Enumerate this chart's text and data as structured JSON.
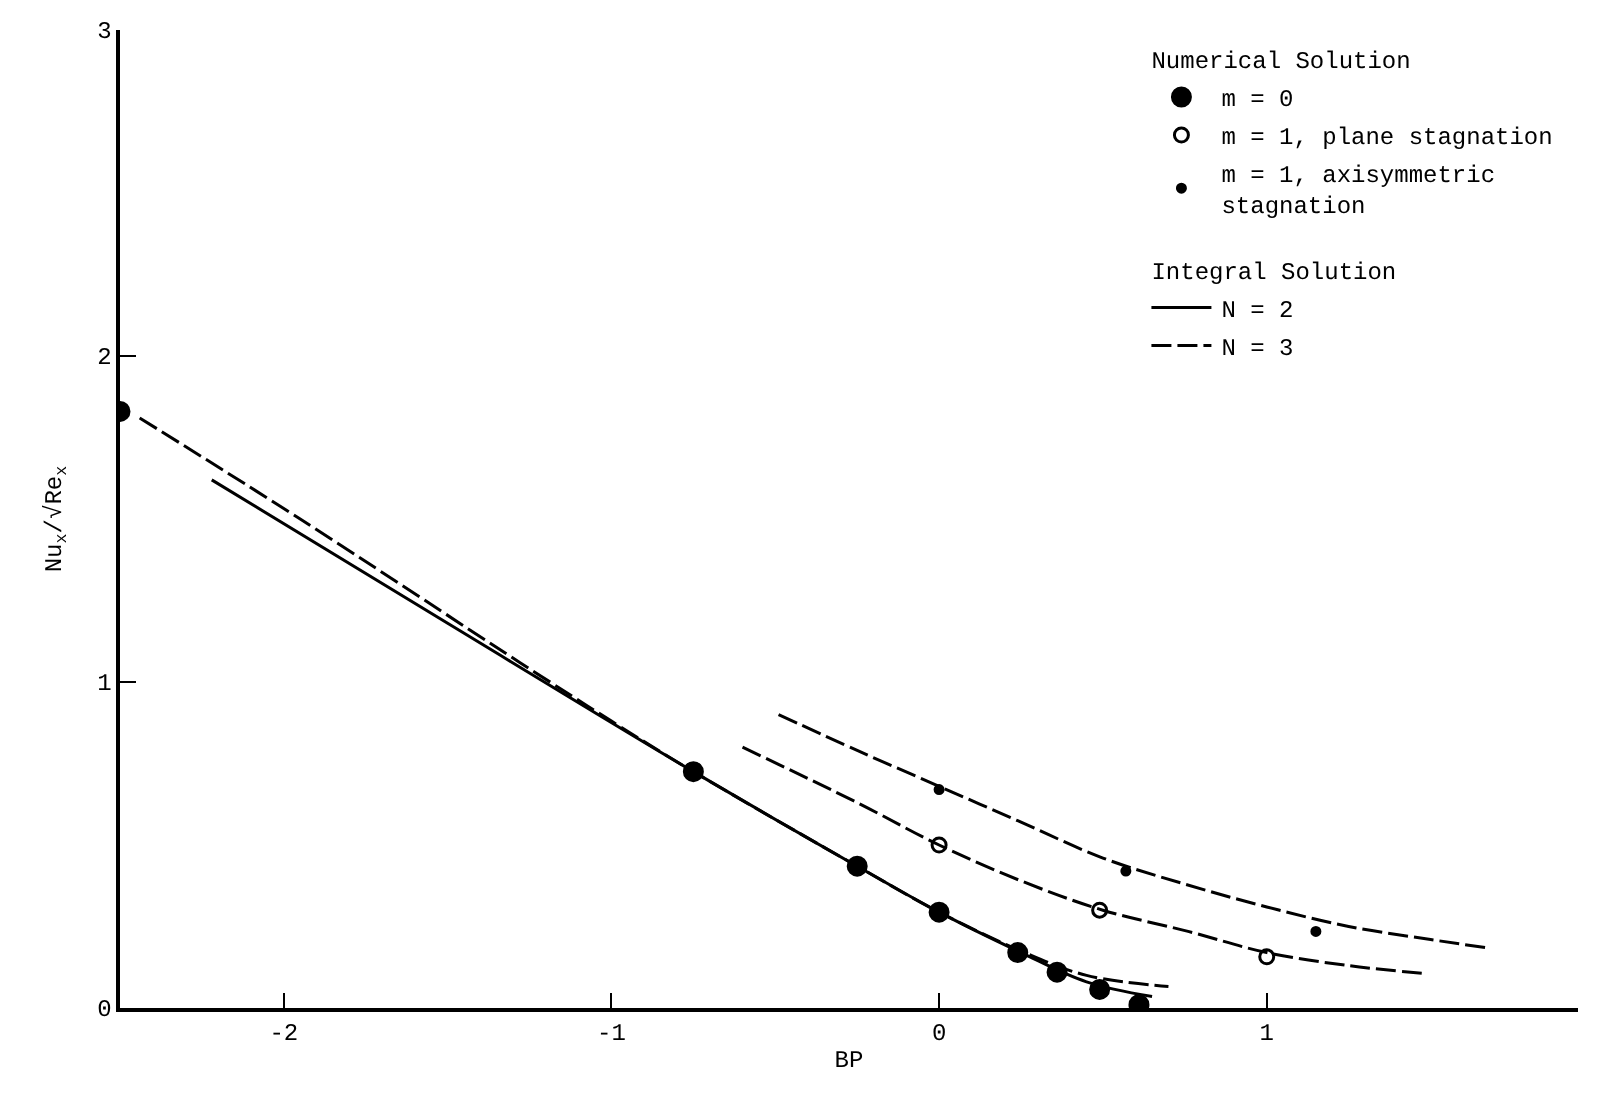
{
  "chart_data": {
    "type": "scatter",
    "xlabel": "BP",
    "ylabel": "Nu$_{x}$/√Re$_{x}$",
    "annotations": [
      "Numerical Solution",
      "Integral Solution"
    ],
    "xlim": [
      -2.5,
      1.95
    ],
    "ylim": [
      0,
      3
    ],
    "xticks": [
      -2,
      -1,
      0,
      1
    ],
    "yticks": [
      0,
      1,
      2,
      3
    ],
    "legend": "top right",
    "series": [
      {
        "name": "m = 0",
        "marker": "circle",
        "color": "#000000",
        "x": [
          -2.5,
          -0.75,
          -0.25,
          0,
          0.24,
          0.36,
          0.49,
          0.61
        ],
        "values": [
          1.83,
          0.725,
          0.435,
          0.294,
          0.17,
          0.11,
          0.057,
          0.01
        ]
      },
      {
        "name": "m = 1, plane stagnation",
        "marker": "circle-open",
        "color": "#000000",
        "x": [
          0,
          0.49,
          1.0
        ],
        "values": [
          0.5,
          0.3,
          0.157
        ]
      },
      {
        "name": "m = 1, axisymmetric\nstagnation",
        "marker": "dot",
        "color": "#000000",
        "x": [
          0,
          0.57,
          1.15
        ],
        "values": [
          0.67,
          0.42,
          0.235
        ]
      },
      {
        "name": "N = 2",
        "type": "line",
        "line_style": "solid",
        "color": "#000000",
        "x": [
          -2.22,
          -1.5,
          -0.75,
          -0.25,
          0,
          0.25,
          0.45,
          0.65
        ],
        "values": [
          1.62,
          1.18,
          0.725,
          0.435,
          0.294,
          0.17,
          0.08,
          0.035
        ]
      },
      {
        "name": "N = 3",
        "type": "line",
        "line_style": "dashed",
        "color": "#000000",
        "x": [
          -2.44,
          -1.95,
          -1.28,
          -1.0,
          -0.75,
          -0.25,
          0,
          0.25,
          0.45,
          0.7
        ],
        "values": [
          1.81,
          1.5,
          1.06,
          0.88,
          0.725,
          0.435,
          0.294,
          0.175,
          0.1,
          0.066
        ]
      },
      {
        "type": "line",
        "line_style": "dashed",
        "color": "#000000",
        "x": [
          -0.6,
          -0.25,
          0,
          0.25,
          0.5,
          0.76,
          1.0,
          1.25,
          1.49
        ],
        "values": [
          0.8,
          0.63,
          0.5,
          0.39,
          0.3,
          0.235,
          0.17,
          0.13,
          0.105
        ]
      },
      {
        "type": "line",
        "line_style": "dashed",
        "color": "#000000",
        "x": [
          -0.49,
          -0.25,
          0,
          0.25,
          0.5,
          0.75,
          1.0,
          1.25,
          1.5,
          1.67
        ],
        "values": [
          0.9,
          0.79,
          0.68,
          0.57,
          0.46,
          0.38,
          0.31,
          0.25,
          0.21,
          0.185
        ]
      }
    ]
  }
}
